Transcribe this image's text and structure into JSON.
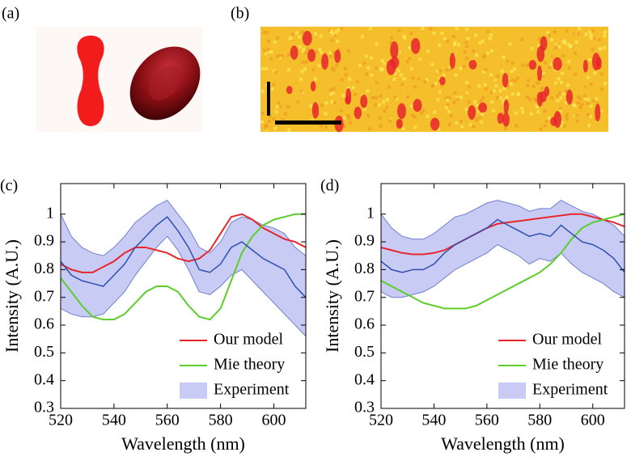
{
  "panels": [
    "(a)",
    "(b)"
  ],
  "chart_data": [
    {
      "type": "line",
      "label": "(c)",
      "xlabel": "Wavelength (nm)",
      "ylabel": "Intensity (A.U.)",
      "x": [
        520,
        524,
        528,
        532,
        536,
        540,
        544,
        548,
        552,
        556,
        560,
        564,
        568,
        572,
        576,
        580,
        584,
        588,
        592,
        596,
        600,
        604,
        608,
        612
      ],
      "xlim": [
        520,
        612
      ],
      "ylim": [
        0.3,
        1.11
      ],
      "xticks": [
        520,
        540,
        560,
        580,
        600
      ],
      "yticks": [
        0.3,
        0.4,
        0.5,
        0.6,
        0.7,
        0.8,
        0.9,
        1
      ],
      "legend": "lower right",
      "series": [
        {
          "name": "Our model",
          "color": "#e8262b",
          "values": [
            0.82,
            0.8,
            0.79,
            0.79,
            0.81,
            0.83,
            0.86,
            0.88,
            0.88,
            0.87,
            0.86,
            0.84,
            0.83,
            0.84,
            0.87,
            0.93,
            0.99,
            1.0,
            0.98,
            0.95,
            0.93,
            0.91,
            0.9,
            0.88
          ]
        },
        {
          "name": "Mie theory",
          "color": "#5ccd2a",
          "values": [
            0.77,
            0.72,
            0.67,
            0.63,
            0.62,
            0.62,
            0.64,
            0.68,
            0.72,
            0.74,
            0.74,
            0.72,
            0.67,
            0.63,
            0.62,
            0.66,
            0.76,
            0.86,
            0.92,
            0.96,
            0.98,
            0.99,
            1.0,
            1.0
          ]
        },
        {
          "name": "Experiment",
          "color": "#2f4fb0",
          "band_color": "#c8ccf5",
          "values": [
            0.83,
            0.78,
            0.76,
            0.75,
            0.74,
            0.78,
            0.82,
            0.88,
            0.92,
            0.96,
            0.99,
            0.94,
            0.88,
            0.8,
            0.79,
            0.82,
            0.88,
            0.9,
            0.87,
            0.84,
            0.82,
            0.8,
            0.74,
            0.7
          ],
          "lower": [
            0.66,
            0.64,
            0.63,
            0.63,
            0.64,
            0.68,
            0.72,
            0.78,
            0.83,
            0.88,
            0.92,
            0.87,
            0.8,
            0.72,
            0.71,
            0.74,
            0.78,
            0.8,
            0.76,
            0.72,
            0.68,
            0.64,
            0.6,
            0.56
          ],
          "upper": [
            1.0,
            0.92,
            0.88,
            0.86,
            0.85,
            0.88,
            0.92,
            0.97,
            1.0,
            1.03,
            1.05,
            1.0,
            0.95,
            0.88,
            0.86,
            0.9,
            0.97,
            0.99,
            0.98,
            0.96,
            0.95,
            0.93,
            0.88,
            0.85
          ]
        }
      ]
    },
    {
      "type": "line",
      "label": "(d)",
      "xlabel": "Wavelength (nm)",
      "ylabel": "Intensity (A.U.)",
      "x": [
        520,
        524,
        528,
        532,
        536,
        540,
        544,
        548,
        552,
        556,
        560,
        564,
        568,
        572,
        576,
        580,
        584,
        588,
        592,
        596,
        600,
        604,
        608,
        612
      ],
      "xlim": [
        520,
        612
      ],
      "ylim": [
        0.3,
        1.11
      ],
      "xticks": [
        520,
        540,
        560,
        580,
        600
      ],
      "yticks": [
        0.3,
        0.4,
        0.5,
        0.6,
        0.7,
        0.8,
        0.9,
        1
      ],
      "legend": "lower right",
      "series": [
        {
          "name": "Our model",
          "color": "#e8262b",
          "values": [
            0.88,
            0.87,
            0.86,
            0.855,
            0.855,
            0.86,
            0.87,
            0.89,
            0.91,
            0.93,
            0.95,
            0.965,
            0.97,
            0.975,
            0.98,
            0.985,
            0.99,
            0.995,
            1.0,
            1.0,
            0.99,
            0.98,
            0.97,
            0.955
          ]
        },
        {
          "name": "Mie theory",
          "color": "#5ccd2a",
          "values": [
            0.76,
            0.74,
            0.72,
            0.7,
            0.68,
            0.67,
            0.66,
            0.66,
            0.66,
            0.67,
            0.69,
            0.71,
            0.73,
            0.75,
            0.77,
            0.79,
            0.82,
            0.86,
            0.91,
            0.95,
            0.97,
            0.98,
            0.99,
            1.0
          ]
        },
        {
          "name": "Experiment",
          "color": "#2f4fb0",
          "band_color": "#c8ccf5",
          "values": [
            0.83,
            0.8,
            0.79,
            0.8,
            0.8,
            0.82,
            0.86,
            0.89,
            0.91,
            0.93,
            0.95,
            0.98,
            0.96,
            0.94,
            0.92,
            0.93,
            0.92,
            0.96,
            0.93,
            0.9,
            0.89,
            0.87,
            0.84,
            0.79
          ],
          "lower": [
            0.72,
            0.7,
            0.7,
            0.71,
            0.72,
            0.74,
            0.77,
            0.8,
            0.82,
            0.84,
            0.86,
            0.89,
            0.87,
            0.85,
            0.82,
            0.84,
            0.83,
            0.86,
            0.82,
            0.79,
            0.77,
            0.75,
            0.72,
            0.7
          ],
          "upper": [
            1.0,
            0.95,
            0.92,
            0.91,
            0.91,
            0.93,
            0.96,
            0.99,
            1.0,
            1.02,
            1.04,
            1.05,
            1.04,
            1.03,
            1.01,
            1.02,
            1.02,
            1.05,
            1.03,
            1.01,
            1.0,
            0.98,
            0.96,
            0.92
          ]
        }
      ]
    }
  ]
}
